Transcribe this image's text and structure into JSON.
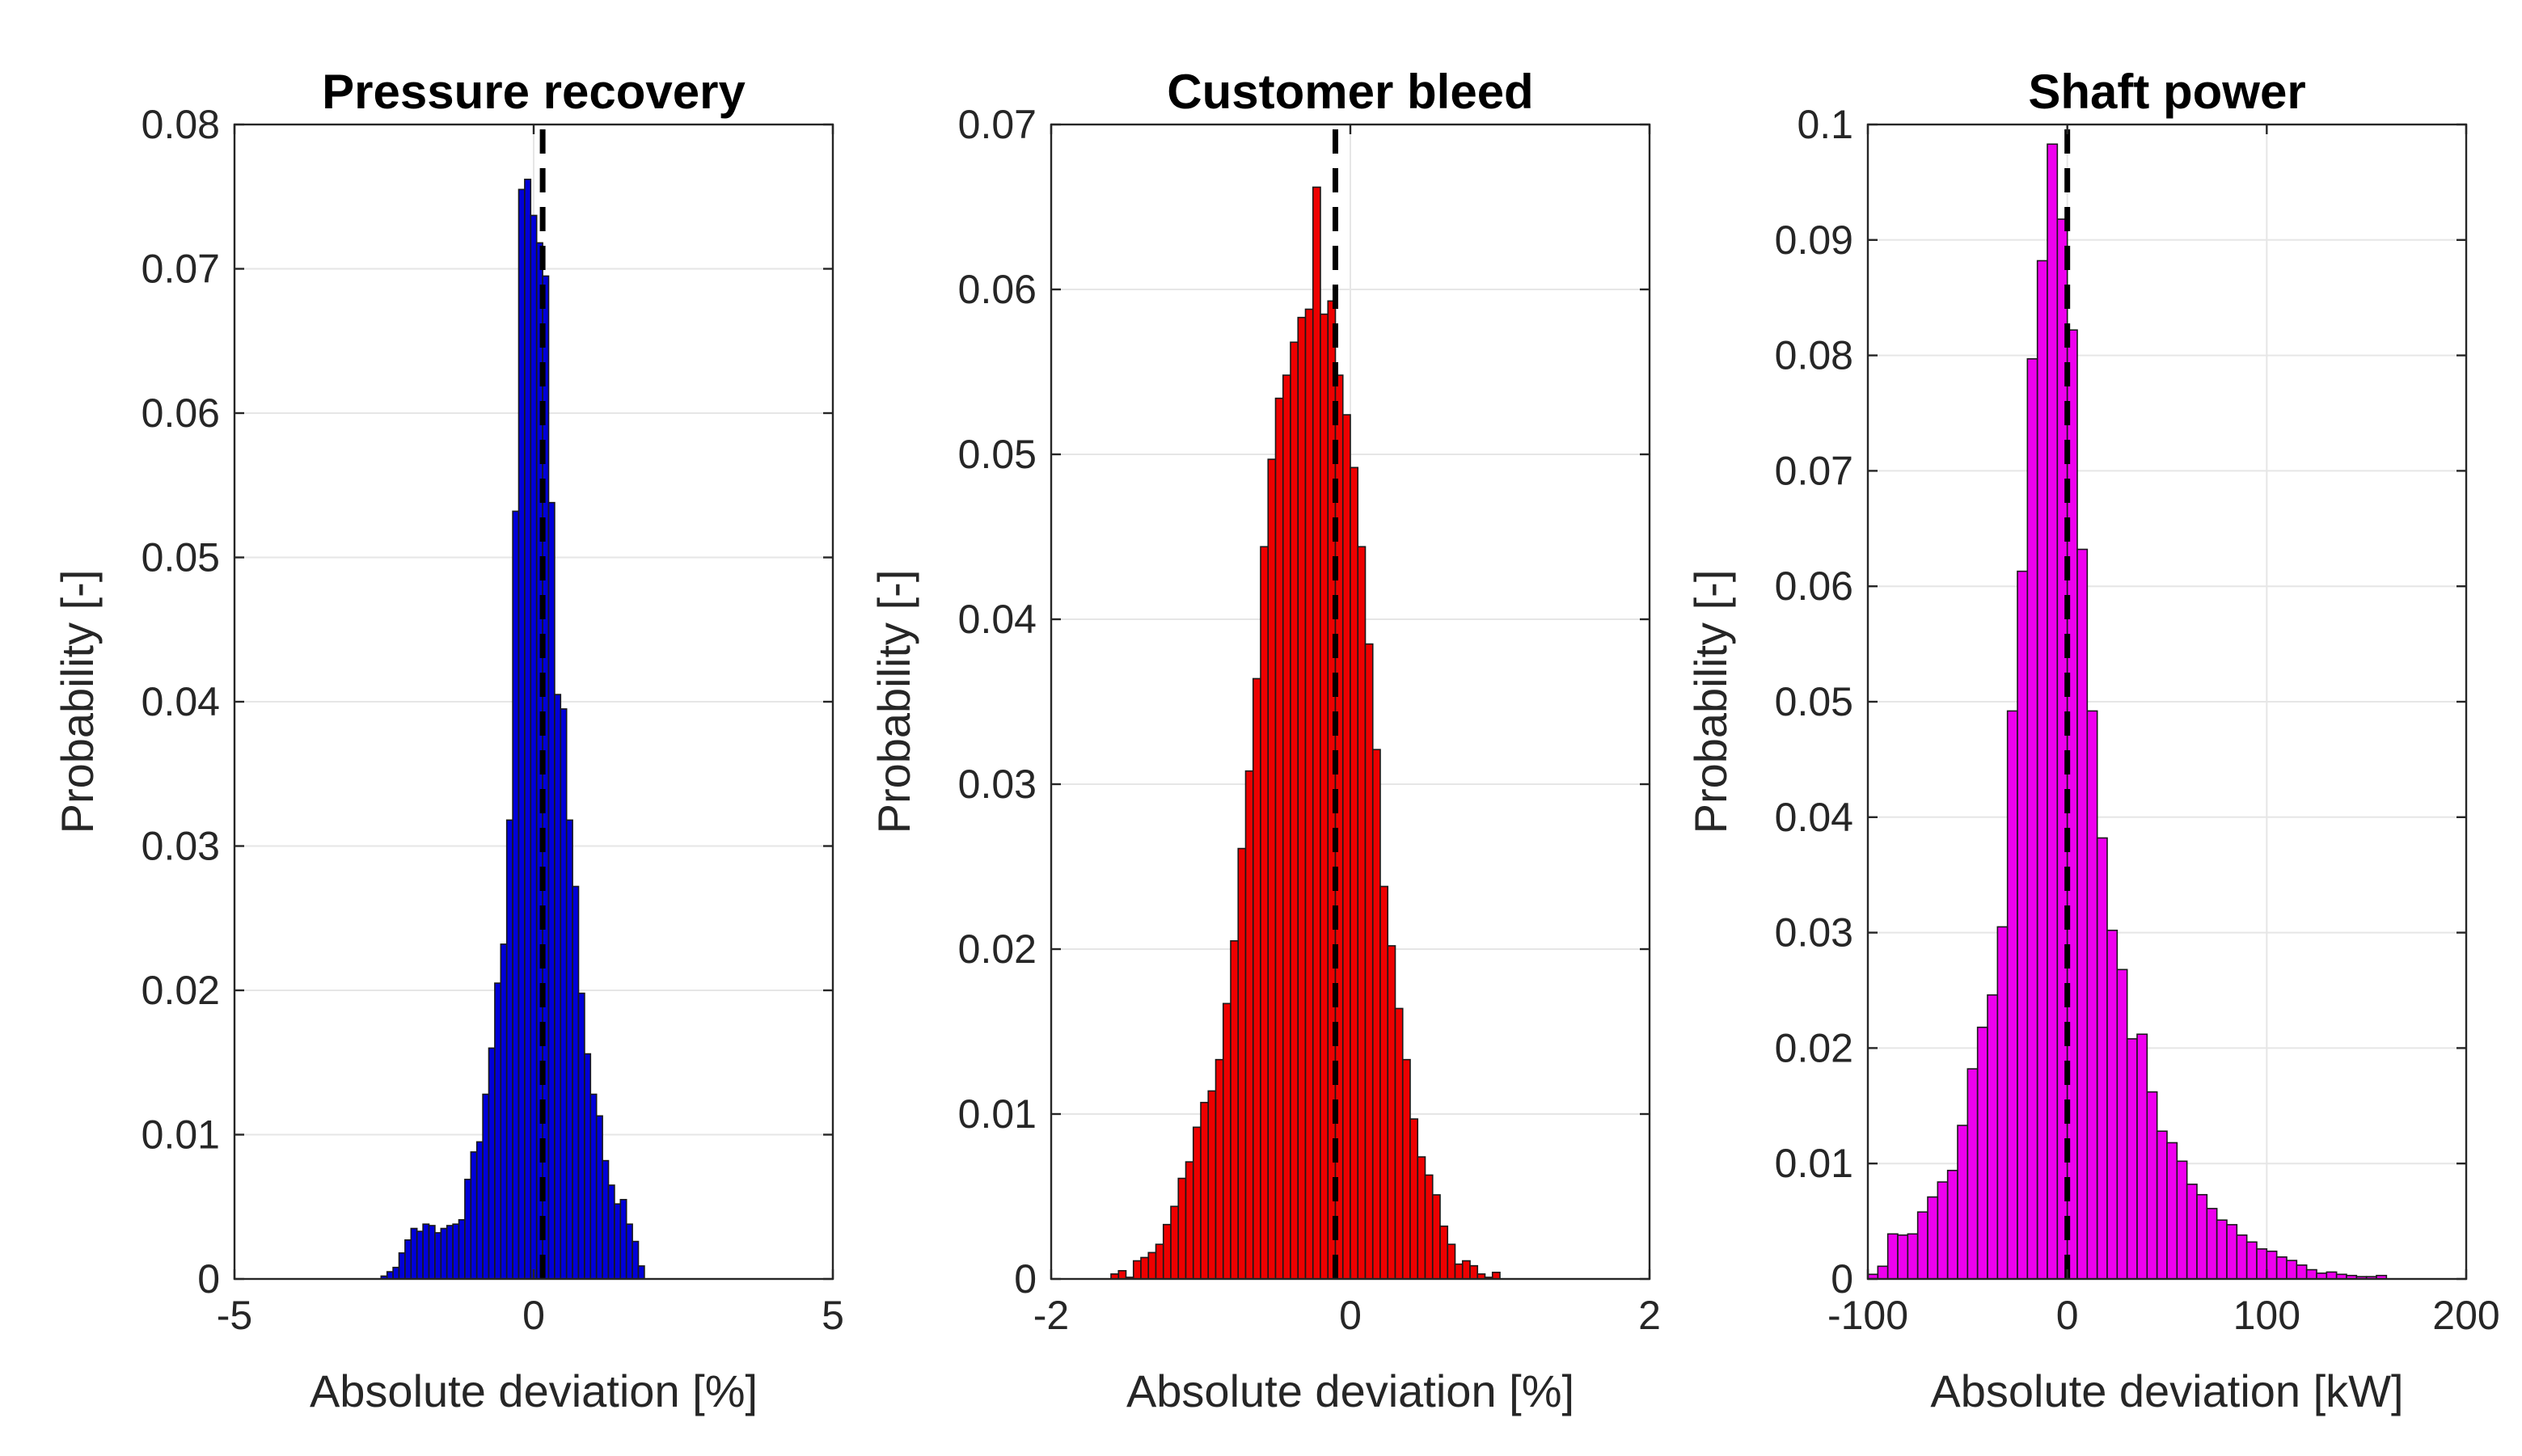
{
  "chart_data": [
    {
      "type": "bar",
      "title": "Pressure recovery",
      "xlabel": "Absolute deviation [%]",
      "ylabel": "Probability [-]",
      "xlim": [
        -5,
        5
      ],
      "ylim": [
        0,
        0.08
      ],
      "xticks": [
        -5,
        0,
        5
      ],
      "xtick_labels": [
        "-5",
        "0",
        "5"
      ],
      "yticks": [
        0,
        0.01,
        0.02,
        0.03,
        0.04,
        0.05,
        0.06,
        0.07,
        0.08
      ],
      "ytick_labels": [
        "0",
        "0.01",
        "0.02",
        "0.03",
        "0.04",
        "0.05",
        "0.06",
        "0.07",
        "0.08"
      ],
      "grid": true,
      "bar_color": "#0000d9",
      "reference_line_x": 0.15,
      "bin_start": -2.55,
      "bin_width": 0.1,
      "values": [
        0.0002,
        0.0005,
        0.0008,
        0.0018,
        0.0027,
        0.0035,
        0.0033,
        0.0038,
        0.0037,
        0.0032,
        0.0035,
        0.0037,
        0.0038,
        0.0041,
        0.0069,
        0.0088,
        0.0095,
        0.0128,
        0.016,
        0.0205,
        0.0232,
        0.0318,
        0.0532,
        0.0755,
        0.0762,
        0.0737,
        0.0718,
        0.0695,
        0.0538,
        0.0405,
        0.0395,
        0.0318,
        0.0272,
        0.0198,
        0.0156,
        0.0128,
        0.0113,
        0.0082,
        0.0065,
        0.0052,
        0.0055,
        0.0038,
        0.0026,
        0.0009
      ]
    },
    {
      "type": "bar",
      "title": "Customer bleed",
      "xlabel": "Absolute deviation [%]",
      "ylabel": "Probability [-]",
      "xlim": [
        -2,
        2
      ],
      "ylim": [
        0,
        0.07
      ],
      "xticks": [
        -2,
        0,
        2
      ],
      "xtick_labels": [
        "-2",
        "0",
        "2"
      ],
      "yticks": [
        0,
        0.01,
        0.02,
        0.03,
        0.04,
        0.05,
        0.06,
        0.07
      ],
      "ytick_labels": [
        "0",
        "0.01",
        "0.02",
        "0.03",
        "0.04",
        "0.05",
        "0.06",
        "0.07"
      ],
      "grid": true,
      "bar_color": "#ee0000",
      "reference_line_x": -0.1,
      "bin_start": -1.6,
      "bin_width": 0.05,
      "values": [
        0.0003,
        0.0005,
        0.0001,
        0.0011,
        0.0013,
        0.0016,
        0.0021,
        0.0033,
        0.0044,
        0.0061,
        0.0071,
        0.0092,
        0.0107,
        0.0114,
        0.0133,
        0.0167,
        0.0205,
        0.0261,
        0.0308,
        0.0364,
        0.0444,
        0.0497,
        0.0534,
        0.0548,
        0.0568,
        0.0583,
        0.0588,
        0.0662,
        0.0585,
        0.0593,
        0.0548,
        0.0524,
        0.0492,
        0.0444,
        0.0385,
        0.0321,
        0.0238,
        0.0202,
        0.0164,
        0.0133,
        0.0097,
        0.0074,
        0.0063,
        0.0051,
        0.0032,
        0.0021,
        0.0009,
        0.0011,
        0.0008,
        0.0003,
        0.0001,
        0.0004
      ]
    },
    {
      "type": "bar",
      "title": "Shaft power",
      "xlabel": "Absolute deviation [kW]",
      "ylabel": "Probability [-]",
      "xlim": [
        -100,
        200
      ],
      "ylim": [
        0,
        0.1
      ],
      "xticks": [
        -100,
        0,
        100,
        200
      ],
      "xtick_labels": [
        "-100",
        "0",
        "100",
        "200"
      ],
      "yticks": [
        0,
        0.01,
        0.02,
        0.03,
        0.04,
        0.05,
        0.06,
        0.07,
        0.08,
        0.09,
        0.1
      ],
      "ytick_labels": [
        "0",
        "0.01",
        "0.02",
        "0.03",
        "0.04",
        "0.05",
        "0.06",
        "0.07",
        "0.08",
        "0.09",
        "0.1"
      ],
      "grid": true,
      "bar_color": "#ee00ee",
      "reference_line_x": 0,
      "bin_start": -100,
      "bin_width": 5,
      "values": [
        0.0004,
        0.0011,
        0.0039,
        0.0038,
        0.0039,
        0.0058,
        0.0071,
        0.0084,
        0.0094,
        0.0133,
        0.0182,
        0.0218,
        0.0246,
        0.0305,
        0.0492,
        0.0613,
        0.0797,
        0.0882,
        0.0983,
        0.0918,
        0.0822,
        0.0632,
        0.0492,
        0.0382,
        0.0302,
        0.0268,
        0.0208,
        0.0212,
        0.0162,
        0.0128,
        0.0118,
        0.0102,
        0.0082,
        0.0073,
        0.0061,
        0.0051,
        0.0047,
        0.0038,
        0.0032,
        0.0026,
        0.0024,
        0.0019,
        0.0016,
        0.0012,
        0.0008,
        0.0005,
        0.0006,
        0.0004,
        0.0003,
        0.0002,
        0.0002,
        0.0003
      ]
    }
  ]
}
